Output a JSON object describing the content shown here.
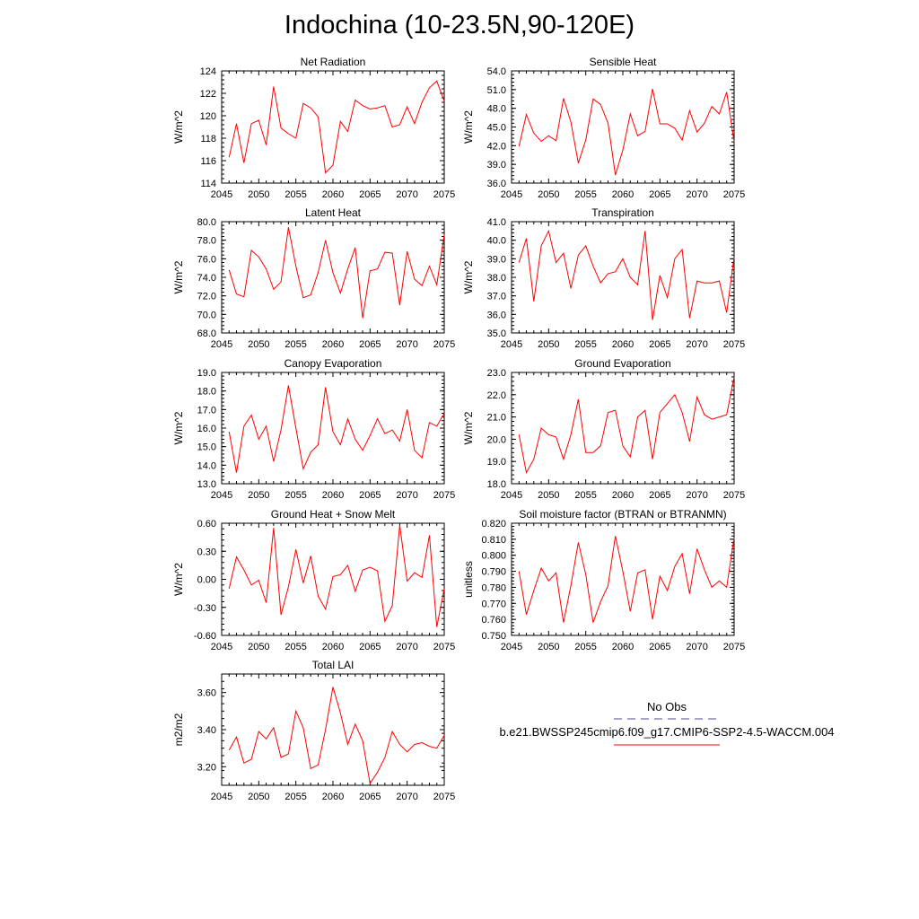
{
  "title": "Indochina (10-23.5N,90-120E)",
  "legend": {
    "obs_label": "No Obs",
    "model_label": "b.e21.BWSSP245cmip6.f09_g17.CMIP6-SSP2-4.5-WACCM.004",
    "obs_color": "#4b4b9a",
    "model_color": "#ff0000"
  },
  "chart_data": [
    {
      "type": "line",
      "title": "Net Radiation",
      "ylabel": "W/m^2",
      "xlim": [
        2045,
        2075
      ],
      "ylim": [
        114,
        124
      ],
      "yticks": [
        "114",
        "116",
        "118",
        "120",
        "122",
        "124"
      ],
      "xticks": [
        "2045",
        "2050",
        "2055",
        "2060",
        "2065",
        "2070",
        "2075"
      ],
      "series": [
        {
          "color": "#ff0000",
          "x": [
            2046,
            2047,
            2048,
            2049,
            2050,
            2051,
            2052,
            2053,
            2054,
            2055,
            2056,
            2057,
            2058,
            2059,
            2060,
            2061,
            2062,
            2063,
            2064,
            2065,
            2066,
            2067,
            2068,
            2069,
            2070,
            2071,
            2072,
            2073,
            2074,
            2075
          ],
          "y": [
            116.3,
            119.3,
            115.8,
            119.3,
            119.6,
            117.4,
            122.6,
            118.9,
            118.4,
            118.0,
            121.1,
            120.7,
            119.9,
            114.9,
            115.6,
            119.5,
            118.6,
            121.4,
            120.9,
            120.6,
            120.7,
            120.9,
            119.0,
            119.2,
            120.8,
            119.3,
            121.2,
            122.5,
            123.1,
            121.3
          ]
        }
      ]
    },
    {
      "type": "line",
      "title": "Sensible Heat",
      "ylabel": "W/m^2",
      "xlim": [
        2045,
        2075
      ],
      "ylim": [
        36.0,
        54.0
      ],
      "yticks": [
        "36.0",
        "39.0",
        "42.0",
        "45.0",
        "48.0",
        "51.0",
        "54.0"
      ],
      "xticks": [
        "2045",
        "2050",
        "2055",
        "2060",
        "2065",
        "2070",
        "2075"
      ],
      "series": [
        {
          "color": "#ff0000",
          "x": [
            2046,
            2047,
            2048,
            2049,
            2050,
            2051,
            2052,
            2053,
            2054,
            2055,
            2056,
            2057,
            2058,
            2059,
            2060,
            2061,
            2062,
            2063,
            2064,
            2065,
            2066,
            2067,
            2068,
            2069,
            2070,
            2071,
            2072,
            2073,
            2074,
            2075
          ],
          "y": [
            41.9,
            47.0,
            44.0,
            42.7,
            43.6,
            42.8,
            49.6,
            45.8,
            39.2,
            42.9,
            49.5,
            48.6,
            45.6,
            37.3,
            41.3,
            47.1,
            43.6,
            44.3,
            51.1,
            45.5,
            45.5,
            44.8,
            42.9,
            47.6,
            44.2,
            45.6,
            48.3,
            47.1,
            50.6,
            42.6
          ]
        }
      ]
    },
    {
      "type": "line",
      "title": "Latent Heat",
      "ylabel": "W/m^2",
      "xlim": [
        2045,
        2075
      ],
      "ylim": [
        68.0,
        80.0
      ],
      "yticks": [
        "68.0",
        "70.0",
        "72.0",
        "74.0",
        "76.0",
        "78.0",
        "80.0"
      ],
      "xticks": [
        "2045",
        "2050",
        "2055",
        "2060",
        "2065",
        "2070",
        "2075"
      ],
      "series": [
        {
          "color": "#ff0000",
          "x": [
            2046,
            2047,
            2048,
            2049,
            2050,
            2051,
            2052,
            2053,
            2054,
            2055,
            2056,
            2057,
            2058,
            2059,
            2060,
            2061,
            2062,
            2063,
            2064,
            2065,
            2066,
            2067,
            2068,
            2069,
            2070,
            2071,
            2072,
            2073,
            2074,
            2075
          ],
          "y": [
            74.8,
            72.2,
            71.9,
            76.9,
            76.2,
            74.9,
            72.7,
            73.5,
            79.4,
            75.2,
            71.8,
            72.1,
            74.5,
            78.0,
            74.5,
            72.3,
            74.9,
            77.2,
            69.6,
            74.7,
            74.9,
            76.7,
            76.6,
            71.0,
            76.8,
            73.8,
            73.1,
            75.2,
            73.2,
            78.6
          ]
        }
      ]
    },
    {
      "type": "line",
      "title": "Transpiration",
      "ylabel": "W/m^2",
      "xlim": [
        2045,
        2075
      ],
      "ylim": [
        35.0,
        41.0
      ],
      "yticks": [
        "35.0",
        "36.0",
        "37.0",
        "38.0",
        "39.0",
        "40.0",
        "41.0"
      ],
      "xticks": [
        "2045",
        "2050",
        "2055",
        "2060",
        "2065",
        "2070",
        "2075"
      ],
      "series": [
        {
          "color": "#ff0000",
          "x": [
            2046,
            2047,
            2048,
            2049,
            2050,
            2051,
            2052,
            2053,
            2054,
            2055,
            2056,
            2057,
            2058,
            2059,
            2060,
            2061,
            2062,
            2063,
            2064,
            2065,
            2066,
            2067,
            2068,
            2069,
            2070,
            2071,
            2072,
            2073,
            2074,
            2075
          ],
          "y": [
            38.8,
            40.1,
            36.7,
            39.7,
            40.5,
            38.8,
            39.3,
            37.4,
            39.2,
            39.7,
            38.6,
            37.7,
            38.2,
            38.3,
            39.0,
            38.0,
            37.6,
            40.5,
            35.7,
            38.1,
            36.9,
            39.0,
            39.5,
            35.8,
            37.8,
            37.7,
            37.7,
            37.8,
            36.1,
            39.1
          ]
        }
      ]
    },
    {
      "type": "line",
      "title": "Canopy Evaporation",
      "ylabel": "W/m^2",
      "xlim": [
        2045,
        2075
      ],
      "ylim": [
        13.0,
        19.0
      ],
      "yticks": [
        "13.0",
        "14.0",
        "15.0",
        "16.0",
        "17.0",
        "18.0",
        "19.0"
      ],
      "xticks": [
        "2045",
        "2050",
        "2055",
        "2060",
        "2065",
        "2070",
        "2075"
      ],
      "series": [
        {
          "color": "#ff0000",
          "x": [
            2046,
            2047,
            2048,
            2049,
            2050,
            2051,
            2052,
            2053,
            2054,
            2055,
            2056,
            2057,
            2058,
            2059,
            2060,
            2061,
            2062,
            2063,
            2064,
            2065,
            2066,
            2067,
            2068,
            2069,
            2070,
            2071,
            2072,
            2073,
            2074,
            2075
          ],
          "y": [
            15.8,
            13.6,
            16.1,
            16.7,
            15.4,
            16.1,
            14.2,
            15.9,
            18.3,
            16.0,
            13.8,
            14.7,
            15.1,
            18.2,
            15.8,
            15.1,
            16.5,
            15.4,
            14.8,
            15.6,
            16.5,
            15.7,
            15.9,
            15.3,
            17.0,
            14.8,
            14.4,
            16.3,
            16.1,
            16.8
          ]
        }
      ]
    },
    {
      "type": "line",
      "title": "Ground Evaporation",
      "ylabel": "W/m^2",
      "xlim": [
        2045,
        2075
      ],
      "ylim": [
        18.0,
        23.0
      ],
      "yticks": [
        "18.0",
        "19.0",
        "20.0",
        "21.0",
        "22.0",
        "23.0"
      ],
      "xticks": [
        "2045",
        "2050",
        "2055",
        "2060",
        "2065",
        "2070",
        "2075"
      ],
      "series": [
        {
          "color": "#ff0000",
          "x": [
            2046,
            2047,
            2048,
            2049,
            2050,
            2051,
            2052,
            2053,
            2054,
            2055,
            2056,
            2057,
            2058,
            2059,
            2060,
            2061,
            2062,
            2063,
            2064,
            2065,
            2066,
            2067,
            2068,
            2069,
            2070,
            2071,
            2072,
            2073,
            2074,
            2075
          ],
          "y": [
            20.2,
            18.5,
            19.1,
            20.5,
            20.2,
            20.1,
            19.1,
            20.2,
            21.8,
            19.4,
            19.4,
            19.7,
            21.2,
            21.3,
            19.7,
            19.2,
            21.0,
            21.3,
            19.1,
            21.2,
            21.6,
            22.0,
            21.2,
            19.9,
            21.9,
            21.1,
            20.9,
            21.0,
            21.1,
            22.8
          ]
        }
      ]
    },
    {
      "type": "line",
      "title": "Ground Heat + Snow Melt",
      "ylabel": "W/m^2",
      "xlim": [
        2045,
        2075
      ],
      "ylim": [
        -0.6,
        0.6
      ],
      "yticks": [
        "-0.60",
        "-0.30",
        "0.00",
        "0.30",
        "0.60"
      ],
      "xticks": [
        "2045",
        "2050",
        "2055",
        "2060",
        "2065",
        "2070",
        "2075"
      ],
      "series": [
        {
          "color": "#ff0000",
          "x": [
            2046,
            2047,
            2048,
            2049,
            2050,
            2051,
            2052,
            2053,
            2054,
            2055,
            2056,
            2057,
            2058,
            2059,
            2060,
            2061,
            2062,
            2063,
            2064,
            2065,
            2066,
            2067,
            2068,
            2069,
            2070,
            2071,
            2072,
            2073,
            2074,
            2075
          ],
          "y": [
            -0.1,
            0.24,
            0.1,
            -0.06,
            -0.01,
            -0.25,
            0.55,
            -0.38,
            -0.08,
            0.32,
            -0.04,
            0.25,
            -0.18,
            -0.32,
            0.03,
            0.05,
            0.15,
            -0.13,
            0.1,
            0.13,
            0.09,
            -0.45,
            -0.28,
            0.58,
            -0.02,
            0.07,
            0.02,
            0.47,
            -0.51,
            -0.1
          ]
        }
      ]
    },
    {
      "type": "line",
      "title": "Soil moisture factor (BTRAN or BTRANMN)",
      "ylabel": "unitless",
      "xlim": [
        2045,
        2075
      ],
      "ylim": [
        0.75,
        0.82
      ],
      "yticks": [
        "0.750",
        "0.760",
        "0.770",
        "0.780",
        "0.790",
        "0.800",
        "0.810",
        "0.820"
      ],
      "xticks": [
        "2045",
        "2050",
        "2055",
        "2060",
        "2065",
        "2070",
        "2075"
      ],
      "series": [
        {
          "color": "#ff0000",
          "x": [
            2046,
            2047,
            2048,
            2049,
            2050,
            2051,
            2052,
            2053,
            2054,
            2055,
            2056,
            2057,
            2058,
            2059,
            2060,
            2061,
            2062,
            2063,
            2064,
            2065,
            2066,
            2067,
            2068,
            2069,
            2070,
            2071,
            2072,
            2073,
            2074,
            2075
          ],
          "y": [
            0.79,
            0.763,
            0.778,
            0.792,
            0.784,
            0.789,
            0.758,
            0.781,
            0.808,
            0.788,
            0.758,
            0.771,
            0.781,
            0.812,
            0.79,
            0.765,
            0.789,
            0.791,
            0.76,
            0.787,
            0.778,
            0.793,
            0.801,
            0.776,
            0.804,
            0.791,
            0.78,
            0.784,
            0.78,
            0.811
          ]
        }
      ]
    },
    {
      "type": "line",
      "title": "Total LAI",
      "ylabel": "m2/m2",
      "xlim": [
        2045,
        2075
      ],
      "ylim": [
        3.1,
        3.7
      ],
      "yticks": [
        "3.20",
        "3.40",
        "3.60"
      ],
      "ytick_values": [
        3.2,
        3.4,
        3.6
      ],
      "xticks": [
        "2045",
        "2050",
        "2055",
        "2060",
        "2065",
        "2070",
        "2075"
      ],
      "series": [
        {
          "color": "#ff0000",
          "x": [
            2046,
            2047,
            2048,
            2049,
            2050,
            2051,
            2052,
            2053,
            2054,
            2055,
            2056,
            2057,
            2058,
            2059,
            2060,
            2061,
            2062,
            2063,
            2064,
            2065,
            2066,
            2067,
            2068,
            2069,
            2070,
            2071,
            2072,
            2073,
            2074,
            2075
          ],
          "y": [
            3.29,
            3.36,
            3.22,
            3.24,
            3.39,
            3.35,
            3.41,
            3.25,
            3.27,
            3.5,
            3.41,
            3.19,
            3.21,
            3.4,
            3.63,
            3.49,
            3.32,
            3.43,
            3.34,
            3.11,
            3.17,
            3.25,
            3.39,
            3.32,
            3.28,
            3.32,
            3.33,
            3.31,
            3.3,
            3.37
          ]
        }
      ]
    }
  ]
}
